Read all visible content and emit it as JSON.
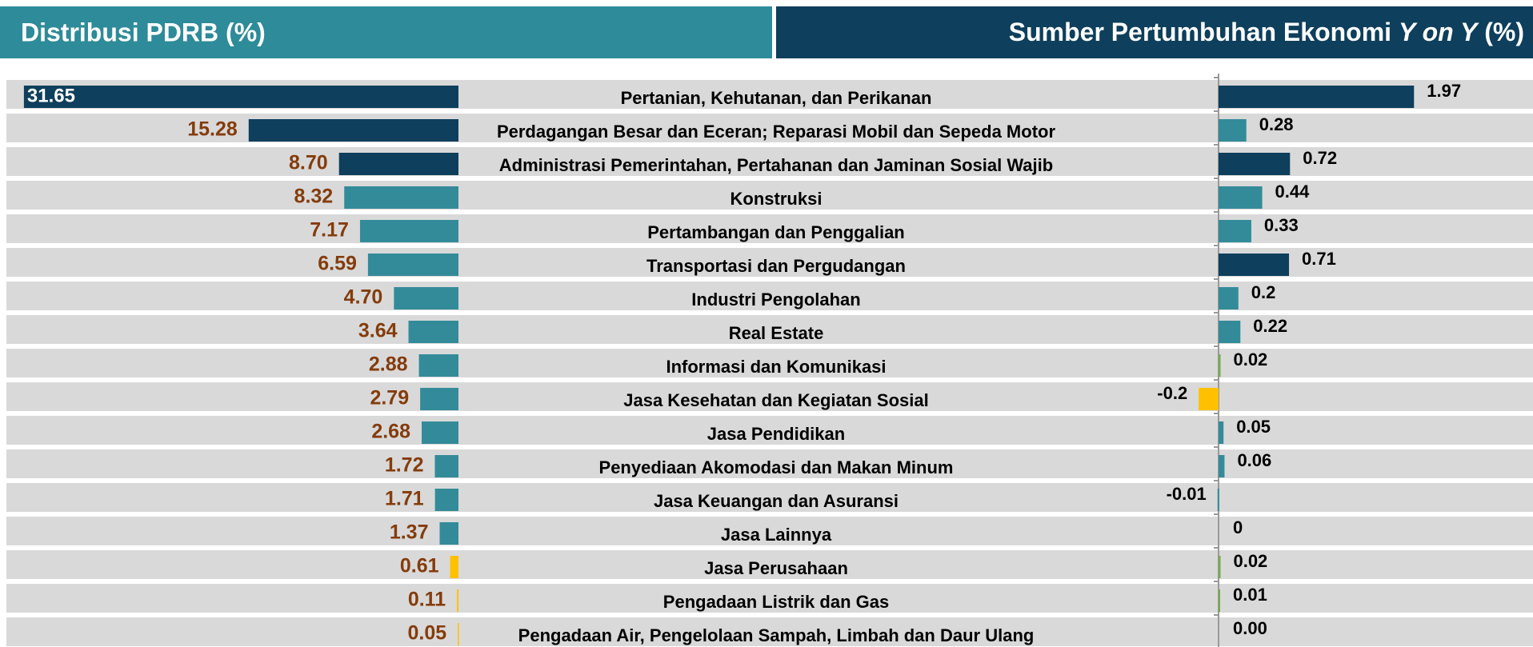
{
  "chart_data": [
    {
      "type": "bar",
      "title": "Distribusi PDRB (%)",
      "categories": [
        "Pertanian, Kehutanan, dan Perikanan",
        "Perdagangan Besar dan Eceran; Reparasi Mobil dan Sepeda Motor",
        "Administrasi Pemerintahan, Pertahanan dan Jaminan Sosial Wajib",
        "Konstruksi",
        "Pertambangan dan Penggalian",
        "Transportasi dan Pergudangan",
        "Industri Pengolahan",
        "Real Estate",
        "Informasi dan Komunikasi",
        "Jasa Kesehatan dan Kegiatan Sosial",
        "Jasa Pendidikan",
        "Penyediaan Akomodasi dan Makan Minum",
        "Jasa Keuangan dan Asuransi",
        "Jasa Lainnya",
        "Jasa Perusahaan",
        "Pengadaan Listrik dan Gas",
        "Pengadaan Air, Pengelolaan Sampah, Limbah dan Daur Ulang"
      ],
      "values": [
        31.65,
        15.28,
        8.7,
        8.32,
        7.17,
        6.59,
        4.7,
        3.64,
        2.88,
        2.79,
        2.68,
        1.72,
        1.71,
        1.37,
        0.61,
        0.11,
        0.05
      ],
      "value_labels": [
        "31.65",
        "15.28",
        "8.70",
        "8.32",
        "7.17",
        "6.59",
        "4.70",
        "3.64",
        "2.88",
        "2.79",
        "2.68",
        "1.72",
        "1.71",
        "1.37",
        "0.61",
        "0.11",
        "0.05"
      ],
      "colors": [
        "#0e3f5c",
        "#0e3f5c",
        "#0e3f5c",
        "#338b99",
        "#338b99",
        "#338b99",
        "#338b99",
        "#338b99",
        "#338b99",
        "#338b99",
        "#338b99",
        "#338b99",
        "#338b99",
        "#338b99",
        "#ffc000",
        "#ffc000",
        "#ffc000"
      ]
    },
    {
      "type": "bar",
      "title": [
        "Sumber Pertumbuhan Ekonomi",
        "Y on Y",
        "(%)"
      ],
      "values": [
        1.97,
        0.28,
        0.72,
        0.44,
        0.33,
        0.71,
        0.2,
        0.22,
        0.02,
        -0.2,
        0.05,
        0.06,
        -0.01,
        0,
        0.02,
        0.01,
        0
      ],
      "value_labels": [
        "1.97",
        "0.28",
        "0.72",
        "0.44",
        "0.33",
        "0.71",
        "0.2",
        "0.22",
        "0.02",
        "-0.2",
        "0.05",
        "0.06",
        "-0.01",
        "0",
        "0.02",
        "0.01",
        "0.00"
      ],
      "colors": [
        "#0e3f5c",
        "#338b99",
        "#0e3f5c",
        "#338b99",
        "#338b99",
        "#0e3f5c",
        "#338b99",
        "#338b99",
        "#70ad47",
        "#ffc000",
        "#338b99",
        "#338b99",
        "#338b99",
        "#338b99",
        "#70ad47",
        "#70ad47",
        "#70ad47"
      ]
    }
  ]
}
